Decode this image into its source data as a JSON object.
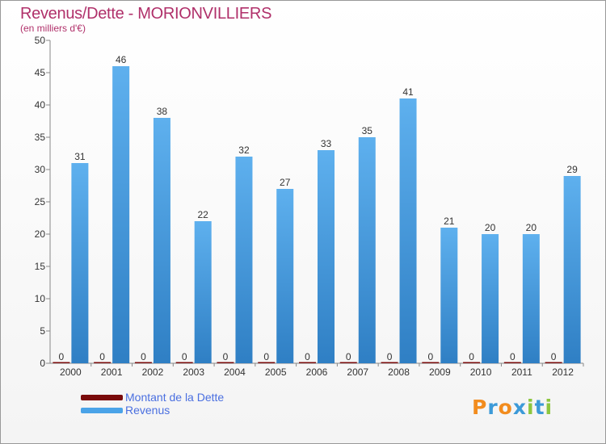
{
  "chart_data": {
    "type": "bar",
    "title": "Revenus/Dette - MORIONVILLIERS",
    "subtitle": "(en milliers d'€)",
    "xlabel": "",
    "ylabel": "",
    "ylim": [
      0,
      50
    ],
    "yticks": [
      0,
      5,
      10,
      15,
      20,
      25,
      30,
      35,
      40,
      45,
      50
    ],
    "grid": false,
    "legend_position": "bottom-left",
    "categories": [
      "2000",
      "2001",
      "2002",
      "2003",
      "2004",
      "2005",
      "2006",
      "2007",
      "2008",
      "2009",
      "2010",
      "2011",
      "2012"
    ],
    "series": [
      {
        "name": "Montant de la Dette",
        "color": "#7a0b0b",
        "values": [
          0,
          0,
          0,
          0,
          0,
          0,
          0,
          0,
          0,
          0,
          0,
          0,
          0
        ]
      },
      {
        "name": "Revenus",
        "color": "#4aa3e8",
        "values": [
          31,
          46,
          38,
          22,
          32,
          27,
          33,
          35,
          41,
          21,
          20,
          20,
          29
        ]
      }
    ]
  },
  "logo": {
    "text": "Proxiti",
    "letters": [
      "P",
      "r",
      "o",
      "x",
      "i",
      "t",
      "i"
    ],
    "colors": [
      "#f28c1e",
      "#3c9ad8",
      "#f28c1e",
      "#3c9ad8",
      "#8dc63f",
      "#3c9ad8",
      "#8dc63f"
    ]
  }
}
